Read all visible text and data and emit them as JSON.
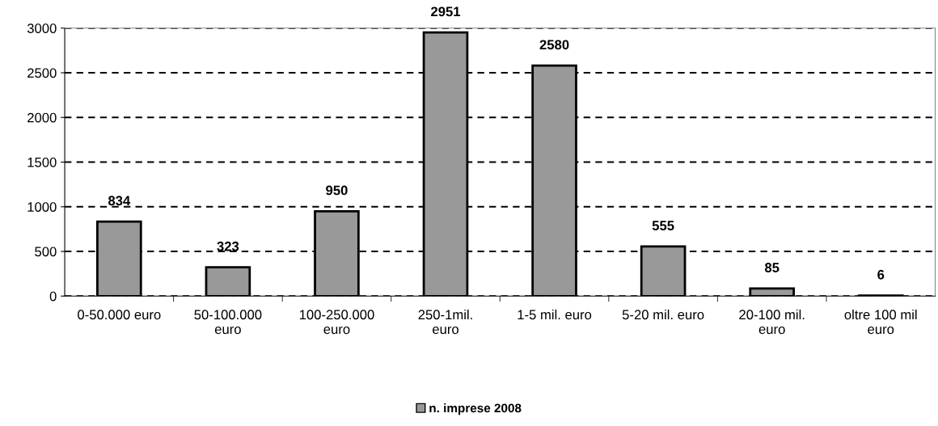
{
  "chart_data": {
    "type": "bar",
    "categories": [
      "0-50.000 euro",
      "50-100.000\neuro",
      "100-250.000\neuro",
      "250-1mil.\neuro",
      "1-5 mil. euro",
      "5-20 mil. euro",
      "20-100 mil.\neuro",
      "oltre 100 mil\neuro"
    ],
    "series": [
      {
        "name": "n. imprese 2008",
        "color": "#999999",
        "values": [
          834,
          323,
          950,
          2951,
          2580,
          555,
          85,
          6
        ]
      }
    ],
    "ylim": [
      0,
      3000
    ],
    "yticks": [
      0,
      500,
      1000,
      1500,
      2000,
      2500,
      3000
    ],
    "grid": "y",
    "line_style": "dashed",
    "legend": "bottom",
    "data_labels": true
  }
}
